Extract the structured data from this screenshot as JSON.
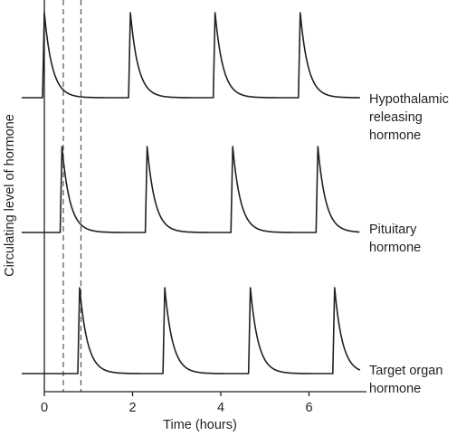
{
  "chart_data": {
    "type": "line",
    "xlabel": "Time (hours)",
    "ylabel": "Circulating level of hormone",
    "x_ticks": [
      "0",
      "2",
      "4",
      "6"
    ],
    "x_range": [
      -0.1,
      7.6
    ],
    "grid": false,
    "pulse_decay_hours": 0.18,
    "reference_lines_x": [
      0.43,
      0.83
    ],
    "series": [
      {
        "name": "Hypothalamic releasing hormone",
        "label_lines": [
          "Hypothalamic",
          "releasing",
          "hormone"
        ],
        "pulse_times": [
          0.0,
          1.95,
          3.87,
          5.8
        ]
      },
      {
        "name": "Pituitary hormone",
        "label_lines": [
          "Pituitary",
          "hormone"
        ],
        "pulse_times": [
          0.4,
          2.33,
          4.27,
          6.2
        ]
      },
      {
        "name": "Target organ hormone",
        "label_lines": [
          "Target organ",
          "hormone"
        ],
        "pulse_times": [
          0.8,
          2.73,
          4.67,
          6.58
        ]
      }
    ],
    "colors": {
      "line": "#231f20",
      "reference_line": "#555555"
    }
  }
}
